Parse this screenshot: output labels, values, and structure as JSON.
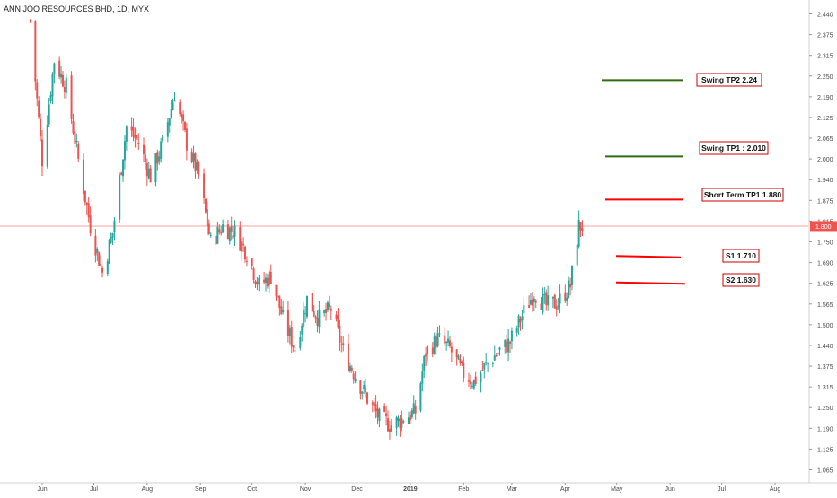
{
  "symbol_header": "ANN JOO RESOURCES BHD, 1D, MYX",
  "colors": {
    "up": "#26a69a",
    "down": "#ef5350",
    "current_price_line": "#f4a3a3",
    "current_price_badge": "#ef5350",
    "tp_line": "#2e6b12",
    "stop_line": "#ff0000",
    "label_border": "#cc0000",
    "axis_text": "#4a4a4a"
  },
  "chart_data": {
    "type": "candlestick",
    "title": "ANN JOO RESOURCES BHD, 1D, MYX",
    "ylim": [
      1.03,
      2.48
    ],
    "y_ticks": [
      "2.440",
      "2.375",
      "2.315",
      "2.250",
      "2.190",
      "2.125",
      "2.065",
      "2.000",
      "1.940",
      "1.875",
      "1.815",
      "1.750",
      "1.690",
      "1.625",
      "1.565",
      "1.500",
      "1.440",
      "1.375",
      "1.315",
      "1.250",
      "1.190",
      "1.125",
      "1.065"
    ],
    "x_tick_labels": [
      "Jun",
      "Jul",
      "Aug",
      "Sep",
      "Oct",
      "Nov",
      "Dec",
      "2019",
      "Feb",
      "Mar",
      "Apr",
      "May",
      "Jun",
      "Jul",
      "Aug"
    ],
    "x_tick_dates": [
      "2018-06-01",
      "2018-07-01",
      "2018-08-01",
      "2018-09-01",
      "2018-10-01",
      "2018-11-01",
      "2018-12-01",
      "2019-01-01",
      "2019-02-01",
      "2019-03-01",
      "2019-04-01",
      "2019-05-01",
      "2019-06-01",
      "2019-07-01",
      "2019-08-01"
    ],
    "current_price": 1.8,
    "current_price_label": "1.800",
    "annotations": [
      {
        "label": "Swing TP2  2.24",
        "price": 2.24,
        "role": "target"
      },
      {
        "label": "Swing TP1 : 2.010",
        "price": 2.01,
        "role": "target"
      },
      {
        "label": "Short Term TP1  1.880",
        "price": 1.88,
        "role": "target-short"
      },
      {
        "label": "S1  1.710",
        "price": 1.71,
        "role": "support"
      },
      {
        "label": "S2  1.630",
        "price": 1.63,
        "role": "support"
      }
    ],
    "price_path": [
      [
        "2018-05-25",
        2.42
      ],
      [
        "2018-06-01",
        2.0
      ],
      [
        "2018-06-08",
        2.3
      ],
      [
        "2018-06-15",
        2.22
      ],
      [
        "2018-06-22",
        2.0
      ],
      [
        "2018-06-29",
        1.8
      ],
      [
        "2018-07-06",
        1.66
      ],
      [
        "2018-07-12",
        1.78
      ],
      [
        "2018-07-20",
        2.1
      ],
      [
        "2018-07-27",
        2.05
      ],
      [
        "2018-08-03",
        1.95
      ],
      [
        "2018-08-10",
        2.05
      ],
      [
        "2018-08-17",
        2.2
      ],
      [
        "2018-08-24",
        2.05
      ],
      [
        "2018-08-31",
        1.95
      ],
      [
        "2018-09-07",
        1.75
      ],
      [
        "2018-09-14",
        1.8
      ],
      [
        "2018-09-21",
        1.78
      ],
      [
        "2018-09-28",
        1.72
      ],
      [
        "2018-10-05",
        1.62
      ],
      [
        "2018-10-12",
        1.65
      ],
      [
        "2018-10-19",
        1.52
      ],
      [
        "2018-10-26",
        1.43
      ],
      [
        "2018-11-02",
        1.58
      ],
      [
        "2018-11-09",
        1.52
      ],
      [
        "2018-11-16",
        1.55
      ],
      [
        "2018-11-23",
        1.42
      ],
      [
        "2018-11-30",
        1.35
      ],
      [
        "2018-12-07",
        1.28
      ],
      [
        "2018-12-14",
        1.22
      ],
      [
        "2018-12-21",
        1.2
      ],
      [
        "2018-12-28",
        1.22
      ],
      [
        "2019-01-04",
        1.24
      ],
      [
        "2019-01-10",
        1.42
      ],
      [
        "2019-01-17",
        1.46
      ],
      [
        "2019-01-24",
        1.43
      ],
      [
        "2019-01-31",
        1.36
      ],
      [
        "2019-02-07",
        1.33
      ],
      [
        "2019-02-14",
        1.38
      ],
      [
        "2019-02-21",
        1.42
      ],
      [
        "2019-02-28",
        1.45
      ],
      [
        "2019-03-07",
        1.53
      ],
      [
        "2019-03-14",
        1.6
      ],
      [
        "2019-03-21",
        1.56
      ],
      [
        "2019-03-28",
        1.57
      ],
      [
        "2019-04-04",
        1.62
      ],
      [
        "2019-04-09",
        1.8
      ],
      [
        "2019-04-11",
        1.8
      ]
    ]
  }
}
